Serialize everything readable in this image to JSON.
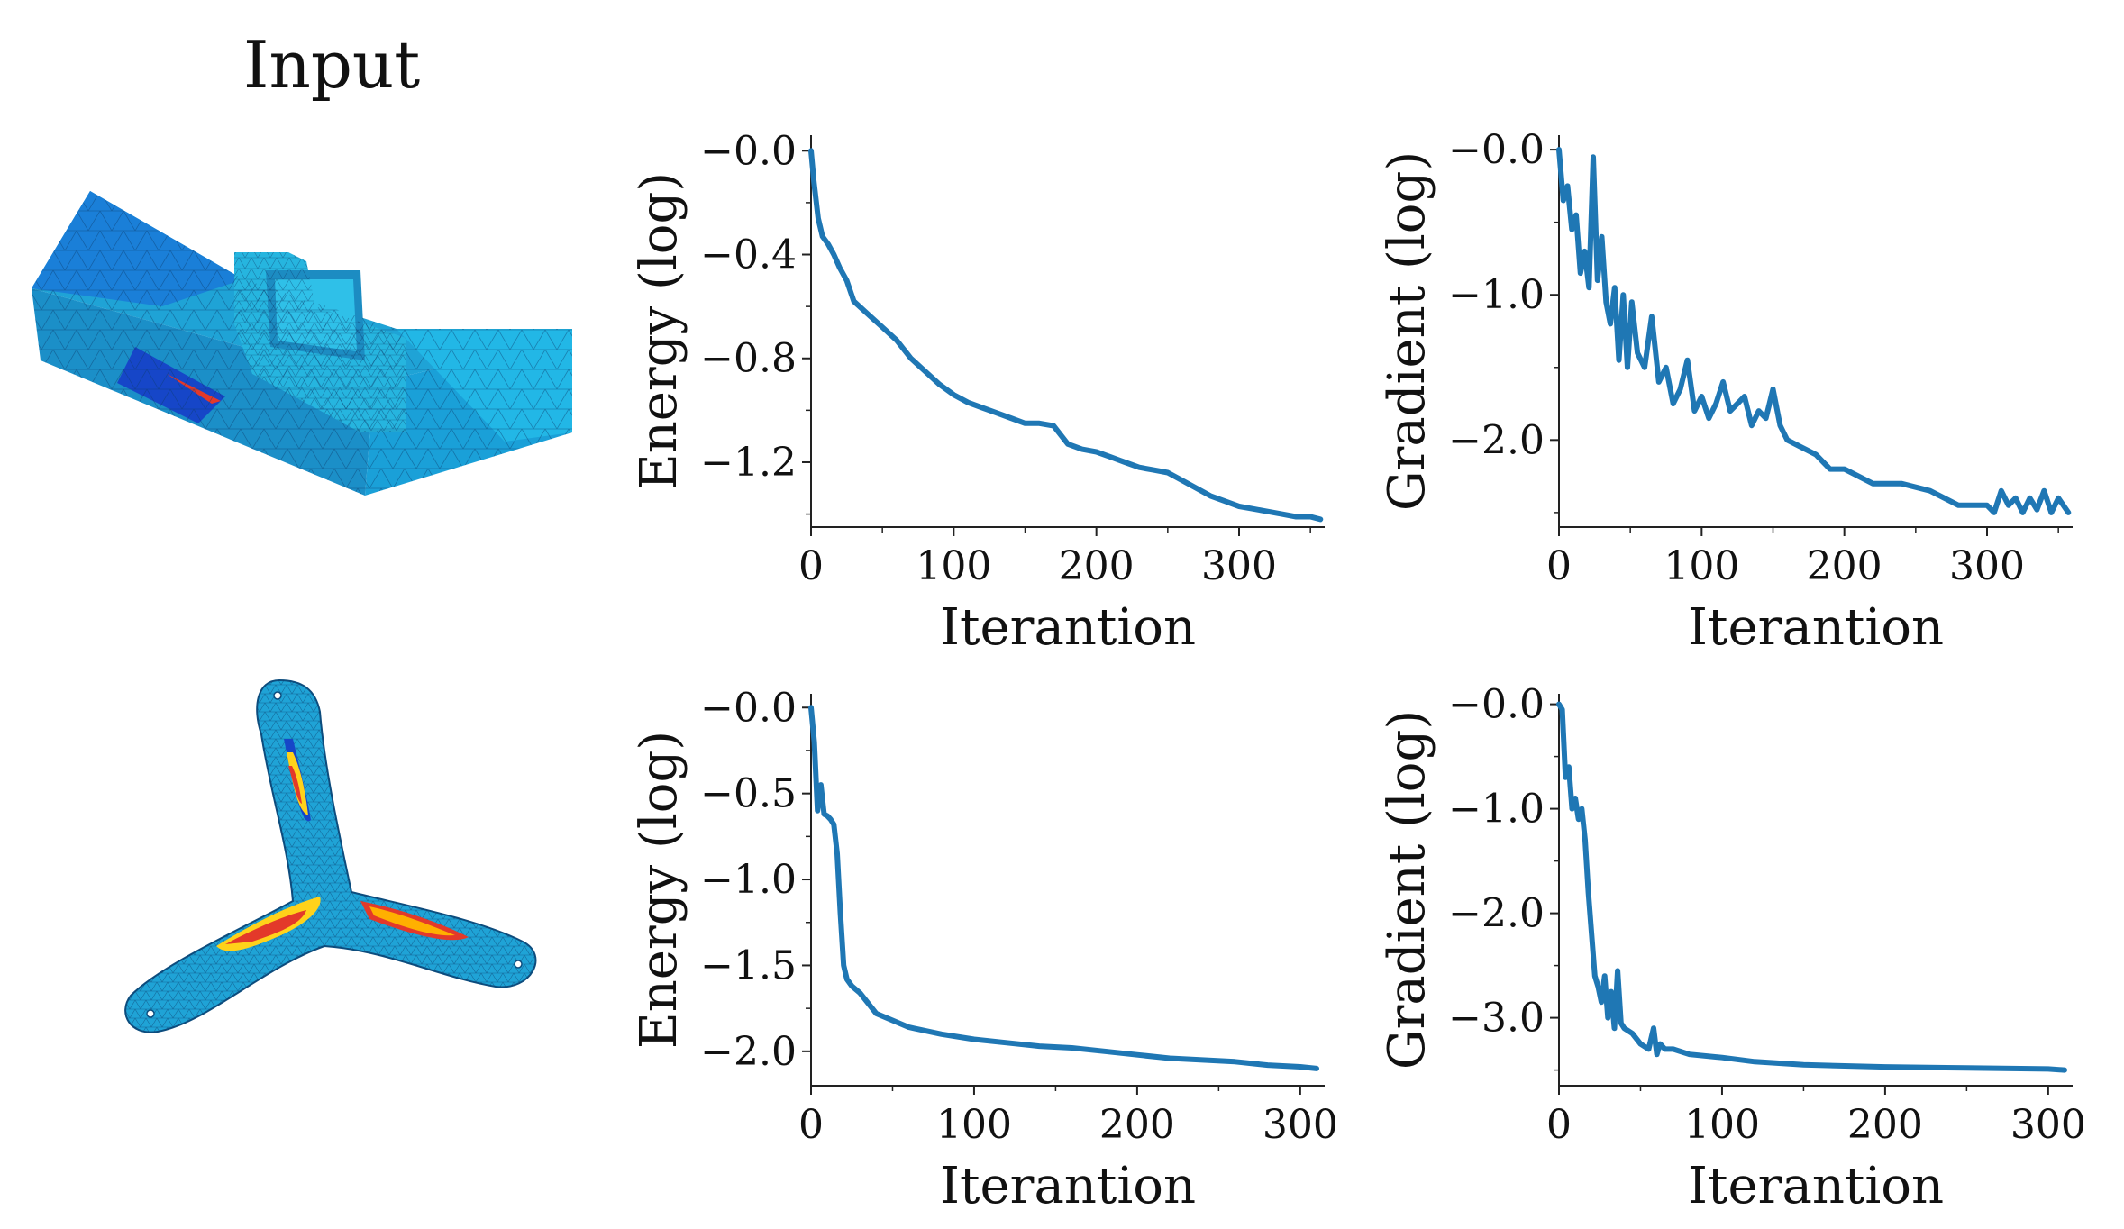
{
  "figure": {
    "title": "Input"
  },
  "colors": {
    "line": "#1f77b4",
    "axis": "#222222",
    "mesh_blue": "#1fa3d6",
    "mesh_dark": "#1646c8",
    "mesh_hot": "#e3392a",
    "mesh_yellow": "#ffd21a"
  },
  "meshes": [
    {
      "name": "bracket-mesh",
      "icon": "bracket-mesh-icon"
    },
    {
      "name": "tri-arm-mesh",
      "icon": "tri-arm-mesh-icon"
    }
  ],
  "chart_data": [
    {
      "id": "c00",
      "type": "line",
      "title": "",
      "xlabel": "Iterantion",
      "ylabel": "Energy (log)",
      "xlim": [
        0,
        360
      ],
      "ylim": [
        -1.45,
        0.06
      ],
      "xticks": [
        0,
        100,
        200,
        300
      ],
      "xtick_labels": [
        "0",
        "100",
        "200",
        "300"
      ],
      "yticks": [
        0.0,
        -0.4,
        -0.8,
        -1.2
      ],
      "ytick_labels": [
        "−0.0",
        "−0.4",
        "−0.8",
        "−1.2"
      ],
      "series": [
        {
          "name": "energy",
          "x": [
            0,
            2,
            5,
            8,
            12,
            16,
            20,
            25,
            30,
            40,
            50,
            60,
            70,
            80,
            90,
            100,
            110,
            120,
            130,
            140,
            150,
            160,
            170,
            180,
            190,
            200,
            210,
            220,
            230,
            240,
            250,
            260,
            270,
            280,
            290,
            300,
            310,
            320,
            330,
            340,
            350,
            357
          ],
          "y": [
            0.0,
            -0.12,
            -0.26,
            -0.33,
            -0.36,
            -0.4,
            -0.45,
            -0.5,
            -0.58,
            -0.63,
            -0.68,
            -0.73,
            -0.8,
            -0.85,
            -0.9,
            -0.94,
            -0.97,
            -0.99,
            -1.01,
            -1.03,
            -1.05,
            -1.05,
            -1.06,
            -1.13,
            -1.15,
            -1.16,
            -1.18,
            -1.2,
            -1.22,
            -1.23,
            -1.24,
            -1.27,
            -1.3,
            -1.33,
            -1.35,
            -1.37,
            -1.38,
            -1.39,
            -1.4,
            -1.41,
            -1.41,
            -1.42
          ]
        }
      ]
    },
    {
      "id": "c01",
      "type": "line",
      "title": "",
      "xlabel": "Iterantion",
      "ylabel": "Gradient (log)",
      "xlim": [
        0,
        360
      ],
      "ylim": [
        -2.6,
        0.1
      ],
      "xticks": [
        0,
        100,
        200,
        300
      ],
      "xtick_labels": [
        "0",
        "100",
        "200",
        "300"
      ],
      "yticks": [
        0.0,
        -1.0,
        -2.0
      ],
      "ytick_labels": [
        "−0.0",
        "−1.0",
        "−2.0"
      ],
      "series": [
        {
          "name": "gradient",
          "x": [
            0,
            3,
            6,
            9,
            12,
            15,
            18,
            21,
            24,
            27,
            30,
            33,
            36,
            39,
            42,
            45,
            48,
            51,
            55,
            60,
            65,
            70,
            75,
            80,
            85,
            90,
            95,
            100,
            105,
            110,
            115,
            120,
            125,
            130,
            135,
            140,
            145,
            150,
            155,
            160,
            170,
            180,
            190,
            200,
            220,
            240,
            260,
            280,
            300,
            305,
            310,
            315,
            320,
            325,
            330,
            335,
            340,
            345,
            350,
            357
          ],
          "y": [
            0.0,
            -0.35,
            -0.25,
            -0.55,
            -0.45,
            -0.85,
            -0.7,
            -0.95,
            -0.05,
            -0.9,
            -0.6,
            -1.05,
            -1.2,
            -0.95,
            -1.45,
            -1.0,
            -1.5,
            -1.05,
            -1.4,
            -1.5,
            -1.15,
            -1.6,
            -1.5,
            -1.75,
            -1.65,
            -1.45,
            -1.8,
            -1.7,
            -1.85,
            -1.75,
            -1.6,
            -1.8,
            -1.75,
            -1.7,
            -1.9,
            -1.8,
            -1.85,
            -1.65,
            -1.9,
            -2.0,
            -2.05,
            -2.1,
            -2.2,
            -2.2,
            -2.3,
            -2.3,
            -2.35,
            -2.45,
            -2.45,
            -2.5,
            -2.35,
            -2.45,
            -2.4,
            -2.5,
            -2.4,
            -2.48,
            -2.35,
            -2.5,
            -2.4,
            -2.5
          ]
        }
      ]
    },
    {
      "id": "c10",
      "type": "line",
      "title": "",
      "xlabel": "Iterantion",
      "ylabel": "Energy (log)",
      "xlim": [
        0,
        315
      ],
      "ylim": [
        -2.2,
        0.08
      ],
      "xticks": [
        0,
        100,
        200,
        300
      ],
      "xtick_labels": [
        "0",
        "100",
        "200",
        "300"
      ],
      "yticks": [
        0.0,
        -0.5,
        -1.0,
        -1.5,
        -2.0
      ],
      "ytick_labels": [
        "−0.0",
        "−0.5",
        "−1.0",
        "−1.5",
        "−2.0"
      ],
      "series": [
        {
          "name": "energy",
          "x": [
            0,
            2,
            4,
            6,
            8,
            10,
            12,
            14,
            16,
            18,
            20,
            22,
            25,
            30,
            35,
            40,
            50,
            60,
            80,
            100,
            120,
            140,
            160,
            180,
            200,
            220,
            240,
            260,
            280,
            300,
            310
          ],
          "y": [
            0.0,
            -0.2,
            -0.6,
            -0.45,
            -0.62,
            -0.63,
            -0.65,
            -0.68,
            -0.85,
            -1.2,
            -1.5,
            -1.58,
            -1.62,
            -1.66,
            -1.72,
            -1.78,
            -1.82,
            -1.86,
            -1.9,
            -1.93,
            -1.95,
            -1.97,
            -1.98,
            -2.0,
            -2.02,
            -2.04,
            -2.05,
            -2.06,
            -2.08,
            -2.09,
            -2.1
          ]
        }
      ]
    },
    {
      "id": "c11",
      "type": "line",
      "title": "",
      "xlabel": "Iterantion",
      "ylabel": "Gradient (log)",
      "xlim": [
        0,
        315
      ],
      "ylim": [
        -3.65,
        0.1
      ],
      "xticks": [
        0,
        100,
        200,
        300
      ],
      "xtick_labels": [
        "0",
        "100",
        "200",
        "300"
      ],
      "yticks": [
        0.0,
        -1.0,
        -2.0,
        -3.0
      ],
      "ytick_labels": [
        "−0.0",
        "−1.0",
        "−2.0",
        "−3.0"
      ],
      "series": [
        {
          "name": "gradient",
          "x": [
            0,
            2,
            4,
            6,
            8,
            10,
            12,
            14,
            16,
            18,
            20,
            22,
            24,
            26,
            28,
            30,
            32,
            34,
            36,
            38,
            40,
            45,
            50,
            55,
            58,
            60,
            62,
            65,
            70,
            80,
            100,
            120,
            150,
            200,
            250,
            300,
            310
          ],
          "y": [
            0.0,
            -0.05,
            -0.7,
            -0.6,
            -1.0,
            -0.9,
            -1.1,
            -1.0,
            -1.3,
            -1.8,
            -2.2,
            -2.6,
            -2.7,
            -2.85,
            -2.6,
            -3.0,
            -2.75,
            -3.1,
            -2.55,
            -3.05,
            -3.1,
            -3.15,
            -3.25,
            -3.3,
            -3.1,
            -3.35,
            -3.25,
            -3.3,
            -3.3,
            -3.35,
            -3.38,
            -3.42,
            -3.45,
            -3.47,
            -3.48,
            -3.49,
            -3.5
          ]
        }
      ]
    }
  ]
}
